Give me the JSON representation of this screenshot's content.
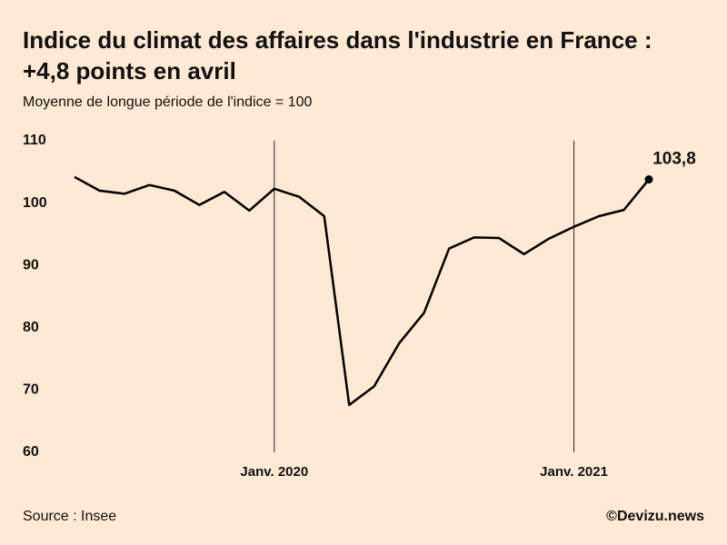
{
  "chart_data": {
    "type": "line",
    "title": [
      "Indice du climat des affaires dans l'industrie en France :",
      "+4,8 points en avril"
    ],
    "subtitle": "Moyenne de longue période de l'indice = 100",
    "categories": [
      null,
      null,
      null,
      null,
      null,
      null,
      null,
      null,
      "Janv. 2020",
      null,
      null,
      null,
      null,
      null,
      null,
      null,
      null,
      null,
      null,
      null,
      "Janv. 2021",
      null,
      null,
      null
    ],
    "series": [
      {
        "color": "#000000",
        "values": [
          104.2,
          102.0,
          101.5,
          102.9,
          102.0,
          99.7,
          101.8,
          98.8,
          102.3,
          101.0,
          97.9,
          67.6,
          70.6,
          77.5,
          82.4,
          92.7,
          94.5,
          94.4,
          91.8,
          94.3,
          96.2,
          97.9,
          98.9,
          103.8
        ],
        "value_labels": [
          null,
          null,
          null,
          null,
          null,
          null,
          null,
          null,
          null,
          null,
          null,
          null,
          null,
          null,
          null,
          null,
          null,
          null,
          null,
          null,
          null,
          null,
          null,
          "103,8"
        ]
      }
    ],
    "ylim": [
      60,
      110
    ],
    "yticks": [
      60,
      70,
      80,
      90,
      100,
      110
    ],
    "source": "Source : Insee",
    "credit": "©Devizu.news"
  }
}
